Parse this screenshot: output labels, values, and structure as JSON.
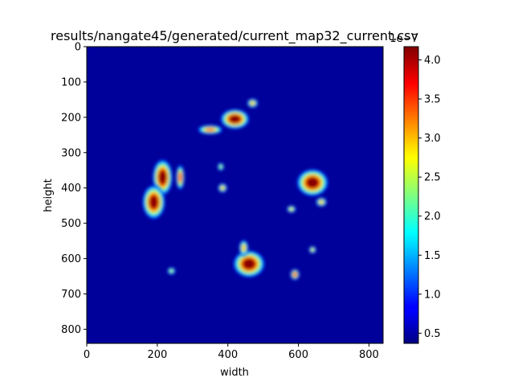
{
  "chart_data": {
    "type": "heatmap",
    "title": "results/nangate45/generated/current_map32_current.csv",
    "xlabel": "width",
    "ylabel": "height",
    "xlim": [
      0,
      840
    ],
    "ylim": [
      840,
      0
    ],
    "x_ticks": [
      0,
      200,
      400,
      600,
      800
    ],
    "y_ticks": [
      0,
      100,
      200,
      300,
      400,
      500,
      600,
      700,
      800
    ],
    "colormap": "jet",
    "colorbar": {
      "min": 0.37,
      "max": 4.17,
      "ticks": [
        "0.5",
        "1.0",
        "1.5",
        "2.0",
        "2.5",
        "3.0",
        "3.5",
        "4.0"
      ],
      "tick_values": [
        0.5,
        1.0,
        1.5,
        2.0,
        2.5,
        3.0,
        3.5,
        4.0
      ],
      "offset_text": "1e−7"
    },
    "hotspots": [
      {
        "x": 215,
        "y": 370,
        "rx": 22,
        "ry": 40,
        "value": 4.15
      },
      {
        "x": 190,
        "y": 440,
        "rx": 25,
        "ry": 38,
        "value": 4.1
      },
      {
        "x": 265,
        "y": 370,
        "rx": 9,
        "ry": 28,
        "value": 3.5
      },
      {
        "x": 420,
        "y": 205,
        "rx": 32,
        "ry": 22,
        "value": 4.15
      },
      {
        "x": 350,
        "y": 235,
        "rx": 28,
        "ry": 10,
        "value": 3.3
      },
      {
        "x": 470,
        "y": 160,
        "rx": 12,
        "ry": 10,
        "value": 3.0
      },
      {
        "x": 640,
        "y": 385,
        "rx": 35,
        "ry": 30,
        "value": 4.15
      },
      {
        "x": 665,
        "y": 440,
        "rx": 12,
        "ry": 10,
        "value": 3.0
      },
      {
        "x": 460,
        "y": 615,
        "rx": 35,
        "ry": 30,
        "value": 4.15
      },
      {
        "x": 445,
        "y": 570,
        "rx": 10,
        "ry": 18,
        "value": 3.0
      },
      {
        "x": 590,
        "y": 645,
        "rx": 10,
        "ry": 12,
        "value": 3.6
      },
      {
        "x": 640,
        "y": 575,
        "rx": 8,
        "ry": 8,
        "value": 2.8
      },
      {
        "x": 385,
        "y": 400,
        "rx": 10,
        "ry": 10,
        "value": 3.0
      },
      {
        "x": 380,
        "y": 340,
        "rx": 7,
        "ry": 9,
        "value": 2.5
      },
      {
        "x": 580,
        "y": 460,
        "rx": 10,
        "ry": 8,
        "value": 2.8
      },
      {
        "x": 240,
        "y": 635,
        "rx": 9,
        "ry": 8,
        "value": 2.5
      }
    ]
  }
}
